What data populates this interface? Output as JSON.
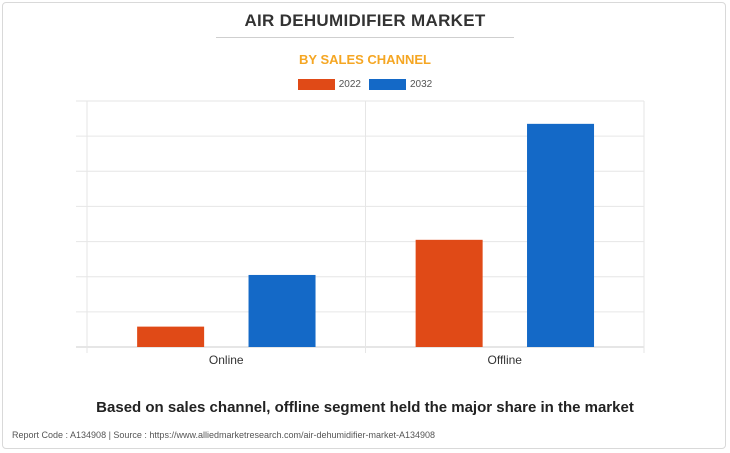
{
  "header": {
    "title": "AIR DEHUMIDIFIER MARKET",
    "subtitle": "BY SALES CHANNEL"
  },
  "chart_data": {
    "type": "bar",
    "categories": [
      "Online",
      "Offline"
    ],
    "series": [
      {
        "name": "2022",
        "color": "#e04a17",
        "values": [
          0.58,
          3.05
        ]
      },
      {
        "name": "2032",
        "color": "#1469c7",
        "values": [
          2.05,
          6.35
        ]
      }
    ],
    "ylim": [
      0,
      7
    ],
    "grid": true,
    "legend": "top-center",
    "xlabel": "",
    "ylabel": ""
  },
  "caption": "Based on sales channel, offline segment held the major share in the market",
  "footer": "Report Code : A134908  |  Source : https://www.alliedmarketresearch.com/air-dehumidifier-market-A134908"
}
